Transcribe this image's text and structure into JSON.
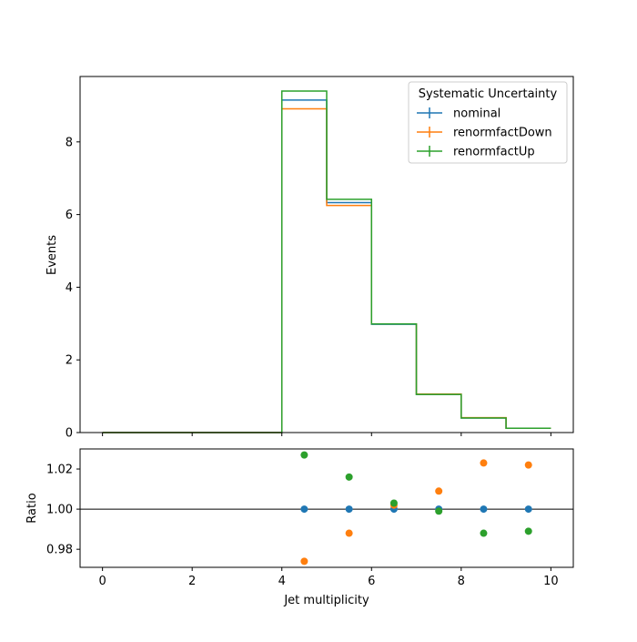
{
  "chart_data": [
    {
      "type": "histogram-step",
      "panel": "main",
      "ylabel": "Events",
      "xlim": [
        -0.5,
        10.5
      ],
      "ylim": [
        0,
        9.8
      ],
      "yticks": [
        0,
        2,
        4,
        6,
        8
      ],
      "bin_edges": [
        0,
        1,
        2,
        3,
        4,
        5,
        6,
        7,
        8,
        9,
        10
      ],
      "legend": {
        "title": "Systematic Uncertainty",
        "placement": "top-right"
      },
      "series": [
        {
          "name": "nominal",
          "color": "#1f77b4",
          "values": [
            0,
            0,
            0,
            0,
            9.15,
            6.33,
            2.98,
            1.05,
            0.4,
            0.12
          ]
        },
        {
          "name": "renormfactDown",
          "color": "#ff7f0e",
          "values": [
            0,
            0,
            0,
            0,
            8.91,
            6.25,
            2.99,
            1.06,
            0.41,
            0.12
          ]
        },
        {
          "name": "renormfactUp",
          "color": "#2ca02c",
          "values": [
            0,
            0,
            0,
            0,
            9.4,
            6.42,
            2.99,
            1.05,
            0.4,
            0.12
          ]
        }
      ]
    },
    {
      "type": "scatter",
      "panel": "ratio",
      "xlabel": "Jet multiplicity",
      "ylabel": "Ratio",
      "xlim": [
        -0.5,
        10.5
      ],
      "ylim": [
        0.971,
        1.03
      ],
      "xticks": [
        0,
        2,
        4,
        6,
        8,
        10
      ],
      "yticks": [
        "0.98",
        "1.00",
        "1.02"
      ],
      "reference_line": 1.0,
      "x": [
        4.5,
        5.5,
        6.5,
        7.5,
        8.5,
        9.5
      ],
      "series": [
        {
          "name": "nominal",
          "color": "#1f77b4",
          "values": [
            1.0,
            1.0,
            1.0,
            1.0,
            1.0,
            1.0
          ]
        },
        {
          "name": "renormfactDown",
          "color": "#ff7f0e",
          "values": [
            0.974,
            0.988,
            1.002,
            1.009,
            1.023,
            1.022
          ]
        },
        {
          "name": "renormfactUp",
          "color": "#2ca02c",
          "values": [
            1.027,
            1.016,
            1.003,
            0.999,
            0.988,
            0.989
          ]
        }
      ]
    }
  ]
}
